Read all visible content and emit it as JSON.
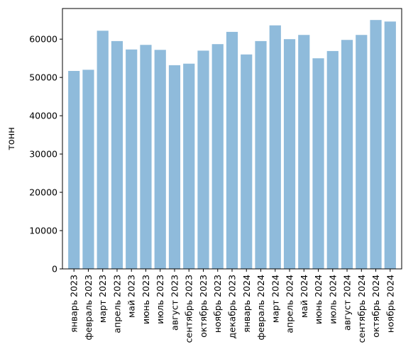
{
  "chart_data": {
    "type": "bar",
    "title": "",
    "xlabel": "",
    "ylabel": "тонн",
    "ylim": [
      0,
      68000
    ],
    "yticks": [
      0,
      10000,
      20000,
      30000,
      40000,
      50000,
      60000
    ],
    "ytick_labels": [
      "0",
      "10000",
      "20000",
      "30000",
      "40000",
      "50000",
      "60000"
    ],
    "grid": false,
    "bar_color": "#8fbbdb",
    "categories": [
      "январь 2023",
      "февраль 2023",
      "март 2023",
      "апрель 2023",
      "май 2023",
      "июнь 2023",
      "июль 2023",
      "август 2023",
      "сентябрь 2023",
      "октябрь 2023",
      "ноябрь 2023",
      "декабрь 2023",
      "январь 2024",
      "февраль 2024",
      "март 2024",
      "апрель 2024",
      "май 2024",
      "июнь 2024",
      "июль 2024",
      "август 2024",
      "сентябрь 2024",
      "октябрь 2024",
      "ноябрь 2024"
    ],
    "values": [
      51700,
      52000,
      62200,
      59500,
      57300,
      58500,
      57200,
      53200,
      53600,
      57000,
      58700,
      61900,
      56000,
      59500,
      63600,
      60000,
      61100,
      55000,
      56900,
      59800,
      61100,
      65000,
      64600
    ]
  }
}
